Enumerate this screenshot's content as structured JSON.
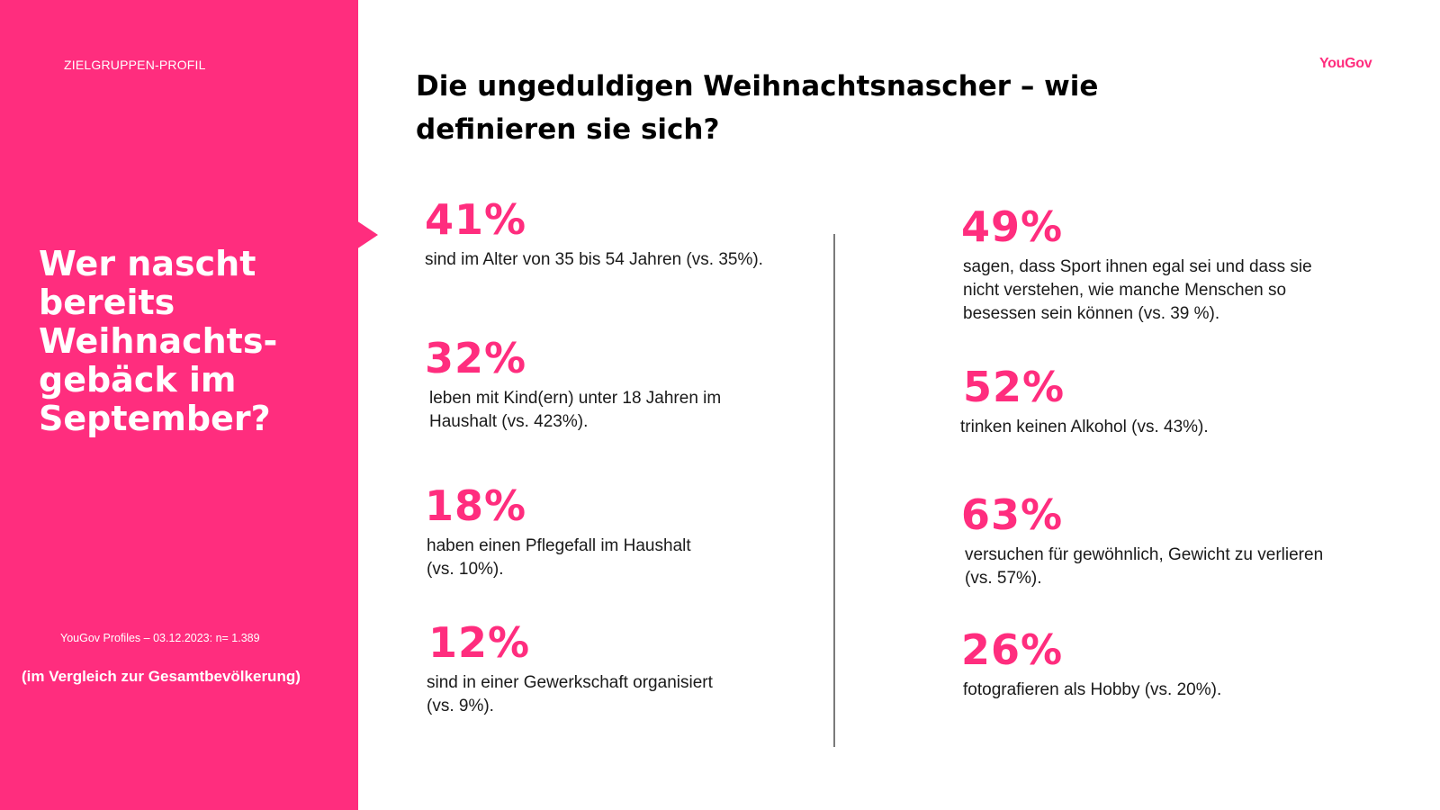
{
  "sidebar": {
    "kicker": "ZIELGRUPPEN-PROFIL",
    "question_lines": [
      "Wer nascht",
      "bereits",
      "Weihnachts-",
      "gebäck im",
      "September?"
    ],
    "source": "YouGov Profiles – 03.12.2023: n= 1.389",
    "comparison": "(im Vergleich zur Gesamtbevölkerung)",
    "color": "#ff2d7e"
  },
  "brand": {
    "logo": "YouGov"
  },
  "header": {
    "title_lines": [
      "Die ungeduldigen Weihnachtsnascher – wie",
      "definieren sie sich?"
    ]
  },
  "stats": {
    "left": [
      {
        "value": "41%",
        "lines": [
          "sind im Alter von 35 bis 54 Jahren (vs. 35%)."
        ]
      },
      {
        "value": "32%",
        "lines": [
          "leben mit Kind(ern) unter 18 Jahren im",
          "Haushalt (vs. 423%)."
        ]
      },
      {
        "value": "18%",
        "lines": [
          "haben einen Pflegefall im Haushalt",
          "(vs. 10%)."
        ]
      },
      {
        "value": "12%",
        "lines": [
          "sind in einer Gewerkschaft organisiert",
          "(vs. 9%)."
        ]
      }
    ],
    "right": [
      {
        "value": "49%",
        "lines": [
          "sagen, dass Sport ihnen egal sei und dass sie",
          "nicht verstehen, wie manche Menschen so",
          "besessen sein können (vs. 39 %)."
        ]
      },
      {
        "value": "52%",
        "lines": [
          "trinken keinen Alkohol (vs. 43%)."
        ]
      },
      {
        "value": "63%",
        "lines": [
          "versuchen für gewöhnlich, Gewicht zu verlieren",
          "(vs. 57%)."
        ]
      },
      {
        "value": "26%",
        "lines": [
          "fotografieren als Hobby (vs. 20%)."
        ]
      }
    ]
  }
}
